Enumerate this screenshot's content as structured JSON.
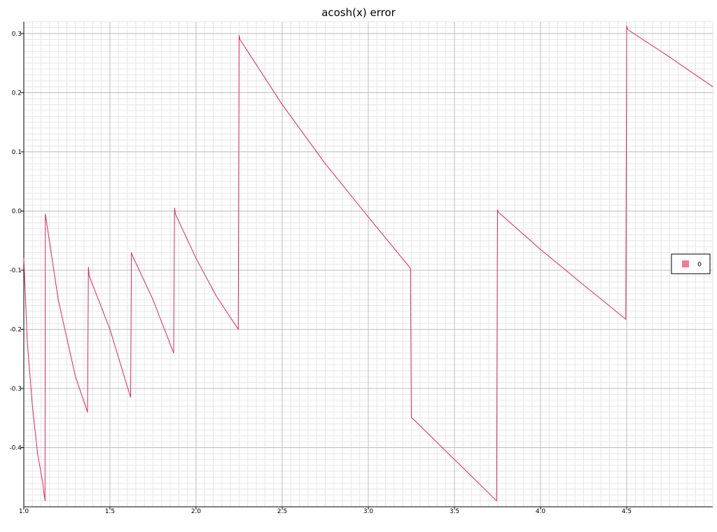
{
  "chart_data": {
    "type": "line",
    "title": "acosh(x) error",
    "xlabel": "",
    "ylabel": "",
    "xlim": [
      1.0,
      5.0
    ],
    "ylim": [
      -0.5,
      0.32
    ],
    "grid": true,
    "legend_position": "right",
    "x_ticks": [
      1.0,
      1.5,
      2.0,
      2.5,
      3.0,
      3.5,
      4.0,
      4.5
    ],
    "x_tick_labels": [
      "1.0",
      "1.5",
      "2.0",
      "2.5",
      "3.0",
      "3.5",
      "4.0",
      "4.5"
    ],
    "y_ticks": [
      -0.4,
      -0.3,
      -0.2,
      -0.1,
      0.0,
      0.1,
      0.2,
      0.3
    ],
    "y_tick_labels": [
      "-0.4",
      "-0.3",
      "-0.2",
      "-0.1",
      "0.0",
      "0.1",
      "0.2",
      "0.3"
    ],
    "series": [
      {
        "name": "0",
        "color": "#e0245e",
        "legend_color": "#f07c98",
        "x": [
          1.0,
          1.02,
          1.05,
          1.08,
          1.11,
          1.123,
          1.125,
          1.2,
          1.3,
          1.37,
          1.375,
          1.38,
          1.5,
          1.62,
          1.625,
          1.63,
          1.75,
          1.87,
          1.875,
          1.88,
          2.0,
          2.12,
          2.245,
          2.25,
          2.255,
          2.5,
          2.75,
          3.0,
          3.245,
          3.25,
          3.255,
          3.5,
          3.745,
          3.75,
          3.755,
          4.0,
          4.25,
          4.495,
          4.5,
          4.505,
          4.75,
          5.0
        ],
        "y": [
          -0.08,
          -0.22,
          -0.33,
          -0.41,
          -0.46,
          -0.49,
          -0.005,
          -0.15,
          -0.28,
          -0.34,
          -0.095,
          -0.11,
          -0.2,
          -0.315,
          -0.07,
          -0.075,
          -0.15,
          -0.24,
          0.005,
          -0.005,
          -0.08,
          -0.145,
          -0.2,
          0.297,
          0.29,
          0.18,
          0.08,
          -0.01,
          -0.097,
          -0.35,
          -0.35,
          -0.42,
          -0.49,
          0.002,
          -0.002,
          -0.065,
          -0.125,
          -0.183,
          0.313,
          0.307,
          0.26,
          0.21
        ]
      }
    ]
  }
}
